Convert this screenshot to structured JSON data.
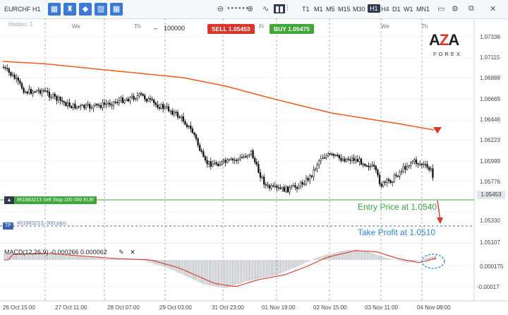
{
  "toolbar": {
    "symbol": "EURCHF",
    "period": "H1",
    "timeframes": [
      "T1",
      "M1",
      "M5",
      "M15",
      "M30",
      "H1",
      "H4",
      "D1",
      "W1",
      "MN1"
    ],
    "active_timeframe": "H1"
  },
  "chart": {
    "hidden_label": "Hidden: 1",
    "quantity": "100000",
    "quantity_minus": "–",
    "sell_label": "SELL 1.05453",
    "buy_label": "BUY 1.05475",
    "sell_color": "#d9362b",
    "buy_color": "#3fa63a",
    "current_price": "1.05453",
    "day_labels": [
      "We",
      "Th",
      "Fr",
      "We",
      "Th"
    ],
    "price_labels": [
      "1.07336",
      "1.07115",
      "1.06888",
      "1.06669",
      "1.06446",
      "1.06223",
      "1.05999",
      "1.05776",
      "1.05453",
      "1.05330",
      "1.05107"
    ],
    "time_labels": [
      "26 Oct 15:00",
      "27 Oct 11:00",
      "28 Oct 07:00",
      "29 Oct 03:00",
      "31 Oct 23:00",
      "01 Nov 19:00",
      "02 Nov 15:00",
      "03 Nov 11:00",
      "04 Nov 08:00"
    ],
    "order_label": "#61883213 Sell Stop 100 000 EUR",
    "tp_tag": "TP",
    "tp_text": "#61883213, 300 pips",
    "entry_text": "Entry Price at 1.0540",
    "take_profit_text": "Take Profit at 1.0510",
    "macd_label": "MACD(12,26,9) -0.000266 0.000062",
    "macd_ticks": [
      "0.000175",
      "-0.000175"
    ],
    "macd_tick_zero": "-0.00017",
    "ma_color": "#f05a1a"
  },
  "logo": {
    "main_a": "A",
    "main_z": "Z",
    "main_a2": "A",
    "sub": "FOREX"
  }
}
